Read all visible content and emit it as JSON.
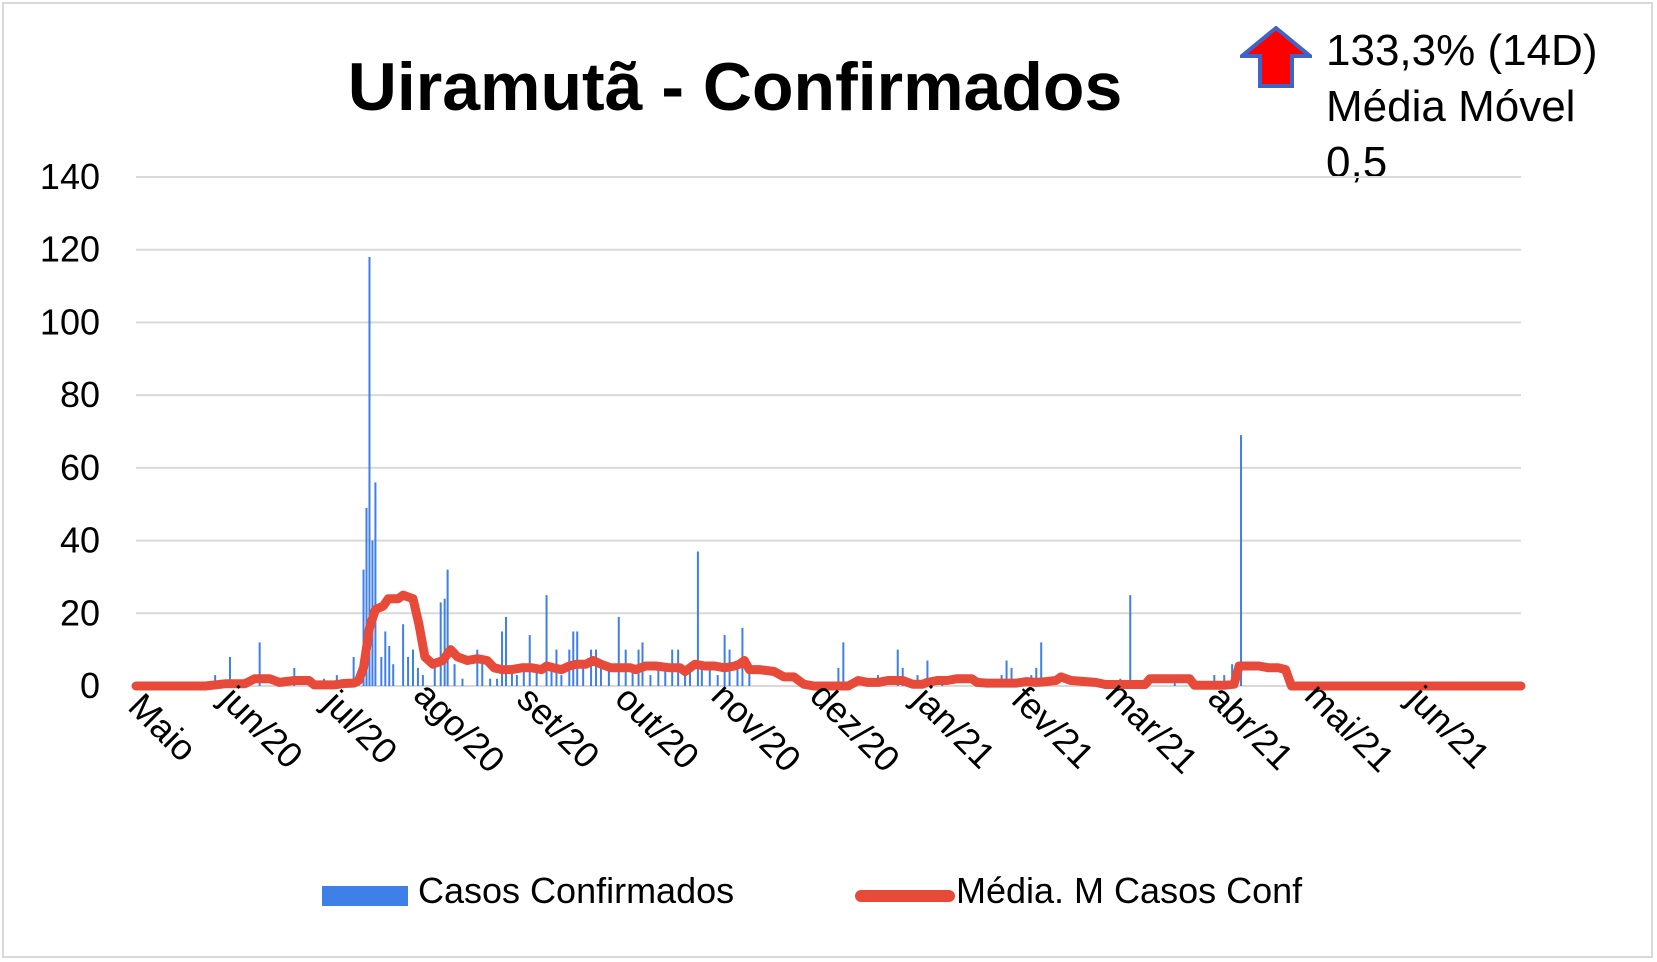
{
  "chart_data": {
    "type": "bar",
    "title": "Uiramutã - Confirmados",
    "ylim": [
      0,
      140
    ],
    "yticks": [
      "0",
      "20",
      "40",
      "60",
      "80",
      "100",
      "120",
      "140"
    ],
    "grid": true,
    "legend_position": "bottom",
    "categories": [
      "Maio",
      "jun/20",
      "jul/20",
      "ago/20",
      "set/20",
      "out/20",
      "nov/20",
      "dez/20",
      "jan/21",
      "fev/21",
      "mar/21",
      "abr/21",
      "mai/21",
      "jun/21"
    ],
    "series": [
      {
        "name": "Casos Confirmados",
        "kind": "bar",
        "color": "#3f7fe8",
        "points": [
          [
            0.25,
            1
          ],
          [
            0.55,
            1
          ],
          [
            0.8,
            3
          ],
          [
            0.95,
            8
          ],
          [
            1.1,
            2
          ],
          [
            1.25,
            12
          ],
          [
            1.5,
            2
          ],
          [
            1.6,
            5
          ],
          [
            1.9,
            2
          ],
          [
            2.03,
            3
          ],
          [
            2.15,
            2
          ],
          [
            2.2,
            8
          ],
          [
            2.25,
            1
          ],
          [
            2.3,
            32
          ],
          [
            2.33,
            49
          ],
          [
            2.36,
            118
          ],
          [
            2.39,
            40
          ],
          [
            2.42,
            56
          ],
          [
            2.48,
            8
          ],
          [
            2.52,
            15
          ],
          [
            2.56,
            11
          ],
          [
            2.6,
            6
          ],
          [
            2.7,
            17
          ],
          [
            2.75,
            8
          ],
          [
            2.8,
            10
          ],
          [
            2.85,
            5
          ],
          [
            2.9,
            3
          ],
          [
            3.02,
            5
          ],
          [
            3.08,
            23
          ],
          [
            3.12,
            24
          ],
          [
            3.15,
            32
          ],
          [
            3.22,
            6
          ],
          [
            3.3,
            2
          ],
          [
            3.45,
            10
          ],
          [
            3.5,
            8
          ],
          [
            3.58,
            2
          ],
          [
            3.65,
            2
          ],
          [
            3.7,
            15
          ],
          [
            3.74,
            19
          ],
          [
            3.8,
            5
          ],
          [
            3.85,
            3
          ],
          [
            3.92,
            6
          ],
          [
            3.98,
            14
          ],
          [
            4.05,
            5
          ],
          [
            4.15,
            25
          ],
          [
            4.2,
            6
          ],
          [
            4.25,
            10
          ],
          [
            4.3,
            3
          ],
          [
            4.38,
            10
          ],
          [
            4.42,
            15
          ],
          [
            4.46,
            15
          ],
          [
            4.52,
            5
          ],
          [
            4.6,
            10
          ],
          [
            4.65,
            10
          ],
          [
            4.7,
            6
          ],
          [
            4.78,
            4
          ],
          [
            4.88,
            19
          ],
          [
            4.95,
            10
          ],
          [
            5.02,
            5
          ],
          [
            5.08,
            10
          ],
          [
            5.12,
            12
          ],
          [
            5.2,
            3
          ],
          [
            5.28,
            5
          ],
          [
            5.35,
            5
          ],
          [
            5.42,
            10
          ],
          [
            5.48,
            10
          ],
          [
            5.55,
            5
          ],
          [
            5.6,
            6
          ],
          [
            5.68,
            37
          ],
          [
            5.72,
            6
          ],
          [
            5.8,
            5
          ],
          [
            5.88,
            3
          ],
          [
            5.95,
            14
          ],
          [
            6.0,
            10
          ],
          [
            6.08,
            5
          ],
          [
            6.13,
            16
          ],
          [
            6.2,
            4
          ],
          [
            7.1,
            5
          ],
          [
            7.15,
            12
          ],
          [
            7.5,
            3
          ],
          [
            7.7,
            10
          ],
          [
            7.75,
            5
          ],
          [
            7.9,
            3
          ],
          [
            8.0,
            7
          ],
          [
            8.15,
            2
          ],
          [
            8.75,
            3
          ],
          [
            8.8,
            7
          ],
          [
            8.85,
            5
          ],
          [
            9.05,
            3
          ],
          [
            9.1,
            5
          ],
          [
            9.15,
            12
          ],
          [
            9.6,
            1
          ],
          [
            9.95,
            2
          ],
          [
            10.05,
            25
          ],
          [
            10.5,
            1
          ],
          [
            10.9,
            3
          ],
          [
            11.0,
            3
          ],
          [
            11.08,
            6
          ],
          [
            11.17,
            69
          ]
        ]
      },
      {
        "name": "Média. M Casos Conf",
        "kind": "line",
        "color": "#e84a3a",
        "points": [
          [
            0,
            0
          ],
          [
            0.7,
            0
          ],
          [
            0.9,
            0.6
          ],
          [
            1.1,
            0.6
          ],
          [
            1.2,
            2
          ],
          [
            1.35,
            2
          ],
          [
            1.45,
            1
          ],
          [
            1.6,
            1.5
          ],
          [
            1.75,
            1.5
          ],
          [
            1.8,
            0.3
          ],
          [
            2.0,
            0.3
          ],
          [
            2.1,
            0.7
          ],
          [
            2.2,
            0.8
          ],
          [
            2.25,
            1.5
          ],
          [
            2.3,
            5
          ],
          [
            2.36,
            16
          ],
          [
            2.42,
            21
          ],
          [
            2.5,
            22
          ],
          [
            2.55,
            24
          ],
          [
            2.65,
            24
          ],
          [
            2.7,
            25
          ],
          [
            2.8,
            24
          ],
          [
            2.86,
            17
          ],
          [
            2.92,
            8
          ],
          [
            3.0,
            6
          ],
          [
            3.1,
            7
          ],
          [
            3.18,
            10
          ],
          [
            3.25,
            8
          ],
          [
            3.35,
            7
          ],
          [
            3.45,
            7.5
          ],
          [
            3.55,
            7
          ],
          [
            3.62,
            5
          ],
          [
            3.7,
            4.5
          ],
          [
            3.8,
            4.5
          ],
          [
            3.9,
            5
          ],
          [
            4.0,
            5
          ],
          [
            4.1,
            4.5
          ],
          [
            4.15,
            5.5
          ],
          [
            4.22,
            5
          ],
          [
            4.3,
            4.5
          ],
          [
            4.38,
            5.5
          ],
          [
            4.45,
            6
          ],
          [
            4.55,
            6
          ],
          [
            4.62,
            7
          ],
          [
            4.7,
            6
          ],
          [
            4.8,
            5
          ],
          [
            4.9,
            5
          ],
          [
            5.0,
            5
          ],
          [
            5.05,
            4.5
          ],
          [
            5.15,
            5.5
          ],
          [
            5.25,
            5.5
          ],
          [
            5.4,
            5
          ],
          [
            5.5,
            5
          ],
          [
            5.55,
            4
          ],
          [
            5.65,
            6
          ],
          [
            5.75,
            5.5
          ],
          [
            5.85,
            5.5
          ],
          [
            5.95,
            5
          ],
          [
            6.05,
            5.5
          ],
          [
            6.1,
            6
          ],
          [
            6.15,
            7
          ],
          [
            6.2,
            4.5
          ],
          [
            6.3,
            4.5
          ],
          [
            6.45,
            4
          ],
          [
            6.55,
            2.5
          ],
          [
            6.65,
            2.5
          ],
          [
            6.75,
            0.5
          ],
          [
            6.85,
            0
          ],
          [
            7.2,
            0
          ],
          [
            7.3,
            1.5
          ],
          [
            7.4,
            1
          ],
          [
            7.5,
            1
          ],
          [
            7.6,
            1.5
          ],
          [
            7.75,
            1.5
          ],
          [
            7.85,
            0.5
          ],
          [
            7.95,
            0.5
          ],
          [
            8.0,
            1
          ],
          [
            8.1,
            1.5
          ],
          [
            8.2,
            1.5
          ],
          [
            8.3,
            2
          ],
          [
            8.45,
            2
          ],
          [
            8.5,
            1
          ],
          [
            8.6,
            0.8
          ],
          [
            8.9,
            0.8
          ],
          [
            9.0,
            1.2
          ],
          [
            9.1,
            1
          ],
          [
            9.2,
            1.2
          ],
          [
            9.3,
            1.5
          ],
          [
            9.35,
            2.5
          ],
          [
            9.45,
            1.5
          ],
          [
            9.7,
            1
          ],
          [
            9.8,
            0.4
          ],
          [
            10.2,
            0.4
          ],
          [
            10.25,
            2
          ],
          [
            10.35,
            2
          ],
          [
            10.65,
            2
          ],
          [
            10.7,
            0.2
          ],
          [
            11.0,
            0.2
          ],
          [
            11.1,
            0.5
          ],
          [
            11.15,
            5.5
          ],
          [
            11.25,
            5.5
          ],
          [
            11.35,
            5.5
          ],
          [
            11.45,
            5
          ],
          [
            11.55,
            5
          ],
          [
            11.62,
            4.5
          ],
          [
            11.68,
            0
          ],
          [
            14.0,
            0
          ]
        ]
      }
    ]
  },
  "badge": {
    "arrow_icon": "up-arrow-icon",
    "arrow_fill": "#ff0000",
    "arrow_outline": "#3f64c8",
    "percent_text": "133,3% (14D)",
    "label": "Média Móvel",
    "value": "0,5"
  },
  "legend": {
    "bar_label": "Casos Confirmados",
    "line_label": "Média. M Casos Conf"
  }
}
